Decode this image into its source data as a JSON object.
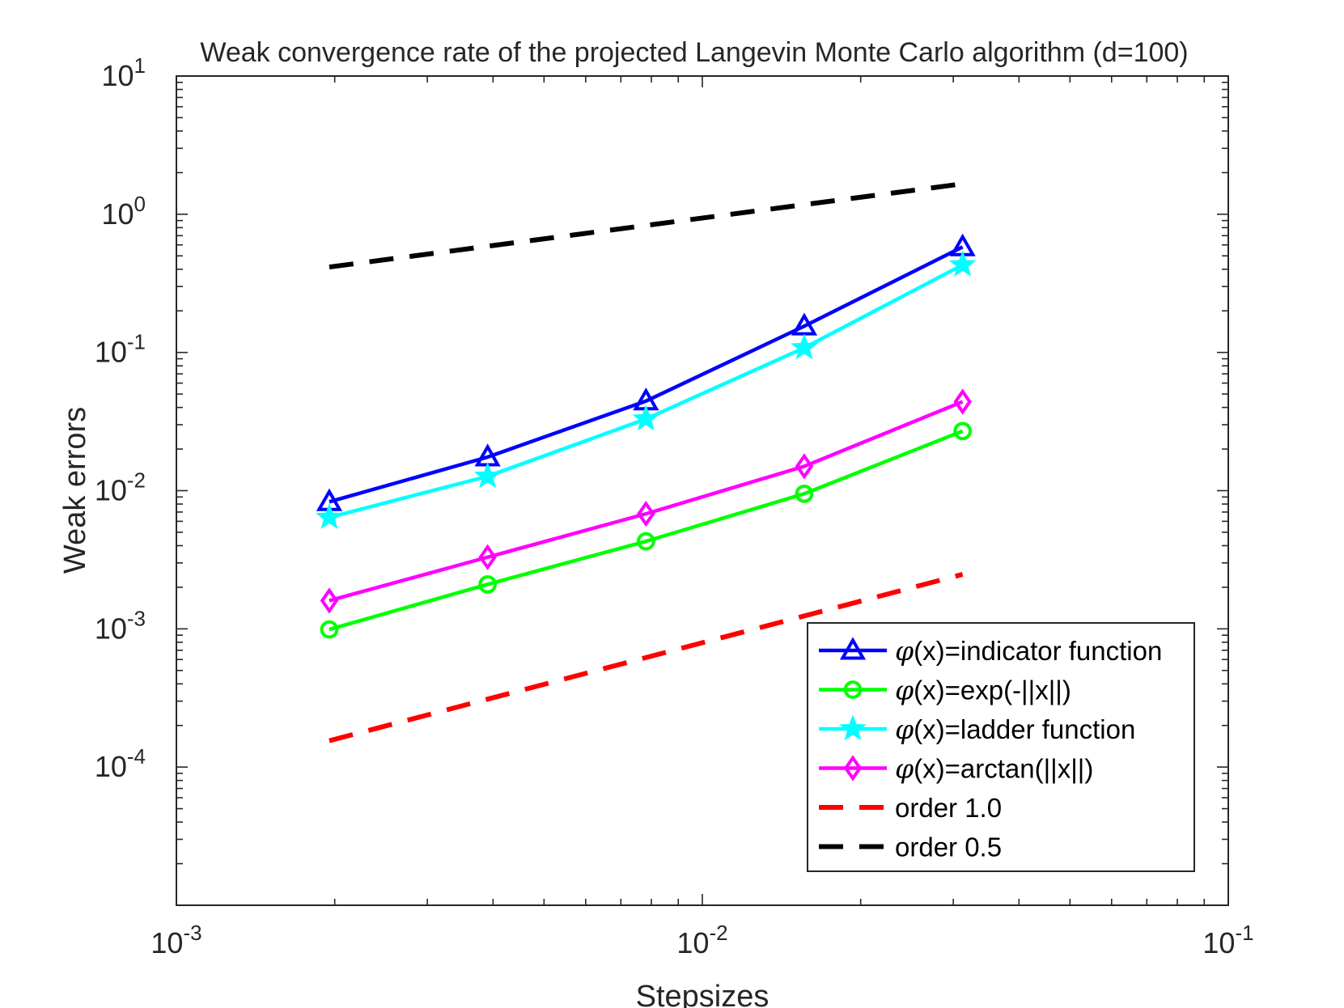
{
  "chart_data": {
    "type": "line",
    "scale": "log-log",
    "title": "Weak convergence rate of the projected Langevin Monte Carlo algorithm (d=100)",
    "xlabel": "Stepsizes",
    "ylabel": "Weak errors",
    "xlim": [
      0.001,
      0.1
    ],
    "ylim": [
      1e-05,
      10
    ],
    "x_ticks": [
      {
        "value": 0.001,
        "base": "10",
        "exp": "-3"
      },
      {
        "value": 0.01,
        "base": "10",
        "exp": "-2"
      },
      {
        "value": 0.1,
        "base": "10",
        "exp": "-1"
      }
    ],
    "y_ticks": [
      {
        "value": 0.0001,
        "base": "10",
        "exp": "-4"
      },
      {
        "value": 0.001,
        "base": "10",
        "exp": "-3"
      },
      {
        "value": 0.01,
        "base": "10",
        "exp": "-2"
      },
      {
        "value": 0.1,
        "base": "10",
        "exp": "-1"
      },
      {
        "value": 1,
        "base": "10",
        "exp": "0"
      },
      {
        "value": 10,
        "base": "10",
        "exp": "1"
      }
    ],
    "x": [
      0.001953125,
      0.00390625,
      0.0078125,
      0.015625,
      0.03125
    ],
    "series": [
      {
        "name": "indicator",
        "phi": "φ",
        "label": "(x)=indicator function",
        "color": "#0000ff",
        "marker": "triangle",
        "values": [
          0.0083,
          0.0175,
          0.0445,
          0.155,
          0.58
        ]
      },
      {
        "name": "exp",
        "phi": "φ",
        "label": "(x)=exp(-||x||)",
        "color": "#00ff00",
        "marker": "circle",
        "values": [
          0.00099,
          0.0021,
          0.0043,
          0.0095,
          0.027
        ]
      },
      {
        "name": "ladder",
        "phi": "φ",
        "label": "(x)=ladder function",
        "color": "#00ffff",
        "marker": "star",
        "values": [
          0.0064,
          0.0127,
          0.033,
          0.108,
          0.43
        ]
      },
      {
        "name": "arctan",
        "phi": "φ",
        "label": "(x)=arctan(||x||)",
        "color": "#ff00ff",
        "marker": "diamond",
        "values": [
          0.0016,
          0.0033,
          0.0068,
          0.015,
          0.044
        ]
      }
    ],
    "reference_lines": [
      {
        "name": "order-1",
        "label": "order 1.0",
        "color": "#ff0000",
        "dash": true,
        "x": [
          0.001953125,
          0.03125
        ],
        "values": [
          0.000155,
          0.00248
        ]
      },
      {
        "name": "order-05",
        "label": "order 0.5",
        "color": "#000000",
        "dash": true,
        "x": [
          0.001953125,
          0.03125
        ],
        "values": [
          0.415,
          1.66
        ]
      }
    ],
    "legend_position": "lower-right",
    "grid": false
  }
}
